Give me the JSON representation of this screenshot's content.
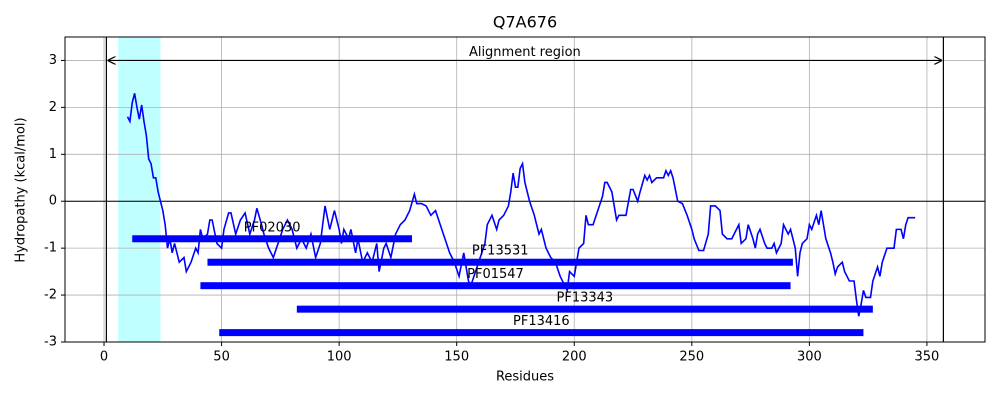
{
  "chart_data": {
    "type": "line",
    "title": "Q7A676",
    "x_label": "Residues",
    "y_label": "Hydropathy (kcal/mol)",
    "x": [
      10,
      11,
      12,
      13,
      14,
      15,
      16,
      17,
      18,
      19,
      20,
      21,
      22,
      23,
      24,
      25,
      26,
      27,
      28,
      29,
      30,
      32,
      34,
      35,
      37,
      39,
      40,
      41,
      42,
      44,
      45,
      46,
      48,
      50,
      51,
      53,
      54,
      56,
      58,
      60,
      62,
      64,
      65,
      67,
      68,
      70,
      72,
      74,
      76,
      78,
      80,
      82,
      84,
      86,
      88,
      90,
      92,
      93,
      94,
      96,
      98,
      100,
      101,
      102,
      104,
      105,
      107,
      108,
      110,
      112,
      114,
      116,
      117,
      119,
      120,
      122,
      124,
      126,
      128,
      130,
      132,
      133,
      135,
      137,
      139,
      141,
      143,
      145,
      147,
      149,
      151,
      153,
      155,
      156,
      158,
      160,
      162,
      163,
      165,
      167,
      168,
      170,
      172,
      173,
      174,
      175,
      176,
      177,
      178,
      179,
      181,
      183,
      185,
      186,
      188,
      190,
      192,
      194,
      196,
      197,
      198,
      200,
      202,
      204,
      205,
      206,
      208,
      210,
      212,
      213,
      214,
      216,
      218,
      219,
      222,
      224,
      225,
      227,
      228,
      230,
      231,
      232,
      233,
      235,
      238,
      239,
      240,
      241,
      242,
      244,
      246,
      248,
      250,
      251,
      253,
      255,
      257,
      258,
      260,
      262,
      263,
      265,
      267,
      269,
      270,
      271,
      273,
      274,
      276,
      277,
      278,
      279,
      281,
      282,
      284,
      285,
      286,
      288,
      289,
      291,
      292,
      294,
      295,
      296,
      297,
      299,
      300,
      301,
      303,
      304,
      305,
      307,
      309,
      310,
      311,
      312,
      314,
      315,
      317,
      319,
      320,
      321,
      322,
      323,
      324,
      326,
      327,
      329,
      330,
      331,
      333,
      336,
      337,
      339,
      340,
      341,
      342,
      345
    ],
    "series": [
      {
        "color": "#0000ff",
        "values": [
          1.8,
          1.7,
          2.1,
          2.3,
          2.0,
          1.75,
          2.05,
          1.7,
          1.4,
          0.9,
          0.8,
          0.5,
          0.5,
          0.2,
          0.0,
          -0.2,
          -0.5,
          -1.0,
          -0.8,
          -1.1,
          -0.9,
          -1.3,
          -1.2,
          -1.5,
          -1.3,
          -1.0,
          -1.1,
          -0.6,
          -0.8,
          -0.7,
          -0.4,
          -0.4,
          -0.9,
          -1.0,
          -0.6,
          -0.25,
          -0.25,
          -0.7,
          -0.4,
          -0.25,
          -0.7,
          -0.4,
          -0.15,
          -0.5,
          -0.7,
          -1.0,
          -1.2,
          -0.9,
          -0.6,
          -0.4,
          -0.6,
          -1.0,
          -0.8,
          -1.0,
          -0.7,
          -1.2,
          -0.9,
          -0.5,
          -0.1,
          -0.6,
          -0.2,
          -0.6,
          -0.9,
          -0.6,
          -0.8,
          -0.6,
          -1.1,
          -0.8,
          -1.3,
          -1.1,
          -1.3,
          -0.9,
          -1.5,
          -1.0,
          -0.9,
          -1.2,
          -0.7,
          -0.5,
          -0.4,
          -0.2,
          0.15,
          -0.05,
          -0.05,
          -0.1,
          -0.3,
          -0.2,
          -0.5,
          -0.8,
          -1.1,
          -1.3,
          -1.6,
          -1.1,
          -1.7,
          -1.8,
          -1.5,
          -1.2,
          -0.9,
          -0.5,
          -0.3,
          -0.6,
          -0.4,
          -0.3,
          -0.1,
          0.2,
          0.6,
          0.3,
          0.3,
          0.7,
          0.8,
          0.4,
          0.0,
          -0.3,
          -0.7,
          -0.6,
          -1.0,
          -1.2,
          -1.3,
          -1.6,
          -1.8,
          -1.9,
          -1.5,
          -1.6,
          -1.0,
          -0.9,
          -0.3,
          -0.5,
          -0.5,
          -0.2,
          0.1,
          0.4,
          0.4,
          0.2,
          -0.4,
          -0.3,
          -0.3,
          0.25,
          0.25,
          0.0,
          0.2,
          0.55,
          0.45,
          0.55,
          0.4,
          0.5,
          0.5,
          0.65,
          0.55,
          0.65,
          0.5,
          0.0,
          -0.05,
          -0.3,
          -0.6,
          -0.8,
          -1.05,
          -1.05,
          -0.7,
          -0.1,
          -0.1,
          -0.2,
          -0.7,
          -0.8,
          -0.8,
          -0.6,
          -0.5,
          -0.9,
          -0.8,
          -0.5,
          -0.8,
          -1.0,
          -0.7,
          -0.6,
          -0.9,
          -1.0,
          -1.0,
          -0.9,
          -1.1,
          -0.9,
          -0.5,
          -0.7,
          -0.6,
          -1.0,
          -1.6,
          -1.1,
          -0.9,
          -0.8,
          -0.5,
          -0.6,
          -0.3,
          -0.5,
          -0.2,
          -0.8,
          -1.1,
          -1.3,
          -1.55,
          -1.4,
          -1.3,
          -1.5,
          -1.7,
          -1.7,
          -2.1,
          -2.45,
          -2.2,
          -1.9,
          -2.05,
          -2.05,
          -1.7,
          -1.4,
          -1.6,
          -1.3,
          -1.0,
          -1.0,
          -0.6,
          -0.6,
          -0.8,
          -0.5,
          -0.35,
          -0.35
        ]
      }
    ],
    "xlim": [
      -16.6,
      374.7
    ],
    "ylim": [
      -3,
      3.5
    ],
    "xticks": [
      0,
      50,
      100,
      150,
      200,
      250,
      300,
      350
    ],
    "yticks": [
      -3,
      -2,
      -1,
      0,
      1,
      2,
      3
    ],
    "grid": true,
    "hline": 0,
    "highlight": {
      "range": [
        6,
        24
      ],
      "color": "#bfffff"
    },
    "alignment_region": {
      "label": "Alignment region",
      "start": 1,
      "end": 357,
      "y": 3
    },
    "domains": [
      {
        "label": "PF02030",
        "start": 12,
        "end": 131,
        "y": -0.8,
        "color": "#0000ff"
      },
      {
        "label": "PF13531",
        "start": 44,
        "end": 293,
        "y": -1.3,
        "color": "#0000ff"
      },
      {
        "label": "PF01547",
        "start": 41,
        "end": 292,
        "y": -1.8,
        "color": "#0000ff"
      },
      {
        "label": "PF13343",
        "start": 82,
        "end": 327,
        "y": -2.3,
        "color": "#0000ff"
      },
      {
        "label": "PF13416",
        "start": 49,
        "end": 323,
        "y": -2.8,
        "color": "#0000ff"
      }
    ]
  }
}
